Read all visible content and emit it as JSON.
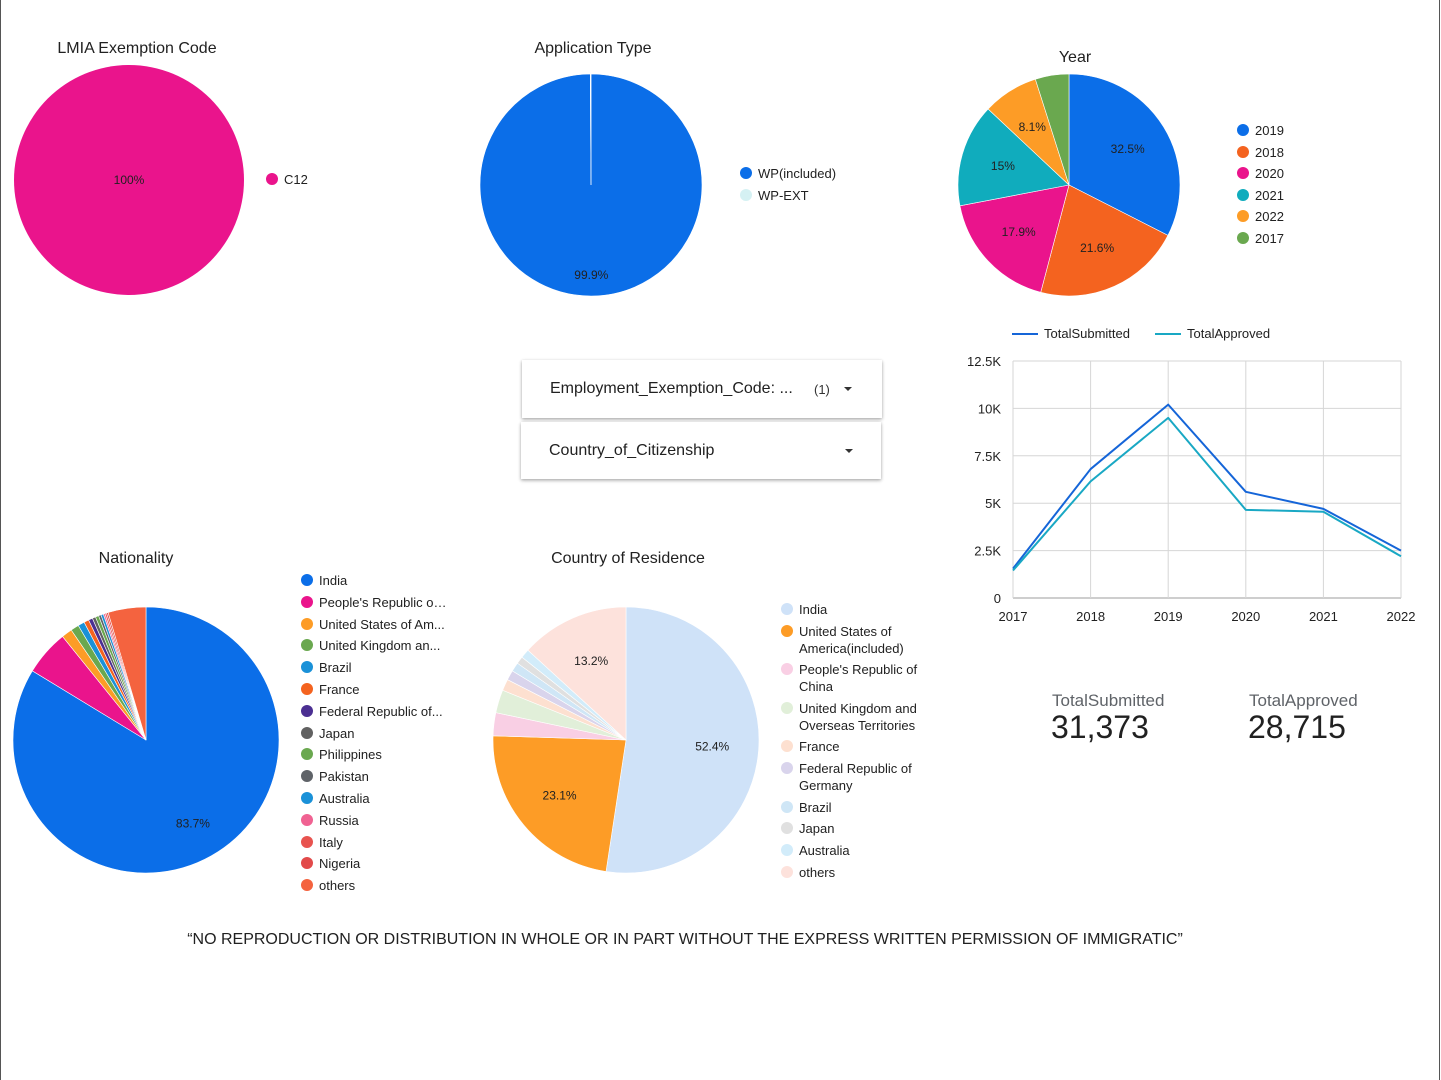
{
  "colors": {
    "blue": "#0b6ee8",
    "orange": "#f4631f",
    "pink": "#ea148c",
    "teal": "#10acbd",
    "amber": "#fd9c26",
    "green": "#6aa84f",
    "light_teal": "#d5f1f3",
    "total_submitted": "#1565d8",
    "total_approved": "#19a8c4"
  },
  "footer": "“NO REPRODUCTION OR DISTRIBUTION IN WHOLE OR IN PART WITHOUT THE EXPRESS WRITTEN PERMISSION OF IMMIGRATIC”",
  "filters": {
    "exemption": {
      "label": "Employment_Exemption_Code: ...",
      "count": "(1)"
    },
    "citizenship": {
      "label": "Country_of_Citizenship"
    }
  },
  "kpis": {
    "submitted": {
      "label": "TotalSubmitted",
      "value": "31,373"
    },
    "approved": {
      "label": "TotalApproved",
      "value": "28,715"
    }
  },
  "chart_data": [
    {
      "id": "lmia",
      "type": "pie",
      "title": "LMIA Exemption Code",
      "slices": [
        {
          "label": "C12",
          "value": 100,
          "data_label": "100%",
          "color": "#ea148c"
        }
      ],
      "legend": [
        "C12"
      ]
    },
    {
      "id": "apptype",
      "type": "pie",
      "title": "Application Type",
      "slices": [
        {
          "label": "WP(included)",
          "value": 99.9,
          "data_label": "99.9%",
          "color": "#0b6ee8"
        },
        {
          "label": "WP-EXT",
          "value": 0.1,
          "data_label": "",
          "color": "#d5f1f3"
        }
      ],
      "legend": [
        "WP(included)",
        "WP-EXT"
      ]
    },
    {
      "id": "year",
      "type": "pie",
      "title": "Year",
      "slices": [
        {
          "label": "2019",
          "value": 32.5,
          "data_label": "32.5%",
          "color": "#0b6ee8"
        },
        {
          "label": "2018",
          "value": 21.6,
          "data_label": "21.6%",
          "color": "#f4631f"
        },
        {
          "label": "2020",
          "value": 17.9,
          "data_label": "17.9%",
          "color": "#ea148c"
        },
        {
          "label": "2021",
          "value": 15.0,
          "data_label": "15%",
          "color": "#10acbd"
        },
        {
          "label": "2022",
          "value": 8.1,
          "data_label": "8.1%",
          "color": "#fd9c26"
        },
        {
          "label": "2017",
          "value": 4.9,
          "data_label": "",
          "color": "#6aa84f"
        }
      ],
      "legend": [
        "2019",
        "2018",
        "2020",
        "2021",
        "2022",
        "2017"
      ]
    },
    {
      "id": "nationality",
      "type": "pie",
      "title": "Nationality",
      "slices": [
        {
          "label": "India",
          "value": 83.7,
          "data_label": "83.7%",
          "color": "#0b6ee8"
        },
        {
          "label": "People's Republic of China",
          "value": 5.5,
          "data_label": "",
          "color": "#ea148c"
        },
        {
          "label": "United States of America(included)",
          "value": 1.3,
          "data_label": "",
          "color": "#fd9c26"
        },
        {
          "label": "United Kingdom and Overseas Territories",
          "value": 1.0,
          "data_label": "",
          "color": "#6aa84f"
        },
        {
          "label": "Brazil",
          "value": 0.8,
          "data_label": "",
          "color": "#1a91d8"
        },
        {
          "label": "France",
          "value": 0.6,
          "data_label": "",
          "color": "#f4631f"
        },
        {
          "label": "Federal Republic of Germany",
          "value": 0.5,
          "data_label": "",
          "color": "#4b2f92"
        },
        {
          "label": "Japan",
          "value": 0.4,
          "data_label": "",
          "color": "#616161"
        },
        {
          "label": "Philippines",
          "value": 0.4,
          "data_label": "",
          "color": "#6aa84f"
        },
        {
          "label": "Pakistan",
          "value": 0.3,
          "data_label": "",
          "color": "#5f6368"
        },
        {
          "label": "Australia",
          "value": 0.3,
          "data_label": "",
          "color": "#1a91d8"
        },
        {
          "label": "Russia",
          "value": 0.2,
          "data_label": "",
          "color": "#f06292"
        },
        {
          "label": "Italy",
          "value": 0.2,
          "data_label": "",
          "color": "#e8534f"
        },
        {
          "label": "Nigeria",
          "value": 0.2,
          "data_label": "",
          "color": "#e24a4a"
        },
        {
          "label": "others",
          "value": 4.6,
          "data_label": "",
          "color": "#f4633f"
        }
      ],
      "legend": [
        "India",
        "People's Republic of China",
        "United States of America(included)",
        "United Kingdom and Overseas Territories",
        "Brazil",
        "France",
        "Federal Republic of Germany",
        "Japan",
        "Philippines",
        "Pakistan",
        "Australia",
        "Russia",
        "Italy",
        "Nigeria",
        "others"
      ],
      "legend_display": [
        "India",
        "People's Republic of China",
        "United States of Am...",
        "United Kingdom an...",
        "Brazil",
        "France",
        "Federal Republic of...",
        "Japan",
        "Philippines",
        "Pakistan",
        "Australia",
        "Russia",
        "Italy",
        "Nigeria",
        "others"
      ]
    },
    {
      "id": "residence",
      "type": "pie",
      "title": "Country of Residence",
      "slices": [
        {
          "label": "India",
          "value": 52.4,
          "data_label": "52.4%",
          "color": "#cfe2f8"
        },
        {
          "label": "United States of America(included)",
          "value": 23.1,
          "data_label": "23.1%",
          "color": "#fd9c26"
        },
        {
          "label": "People's Republic of China",
          "value": 2.8,
          "data_label": "",
          "color": "#f9cfe4"
        },
        {
          "label": "United Kingdom and Overseas Territories",
          "value": 2.8,
          "data_label": "",
          "color": "#e1efd9"
        },
        {
          "label": "France",
          "value": 1.4,
          "data_label": "",
          "color": "#fde0d0"
        },
        {
          "label": "Federal Republic of Germany",
          "value": 1.2,
          "data_label": "",
          "color": "#d9d4ec"
        },
        {
          "label": "Brazil",
          "value": 1.1,
          "data_label": "",
          "color": "#cfe6f6"
        },
        {
          "label": "Japan",
          "value": 0.9,
          "data_label": "",
          "color": "#e0e0e0"
        },
        {
          "label": "Australia",
          "value": 1.1,
          "data_label": "",
          "color": "#d2ecfa"
        },
        {
          "label": "others",
          "value": 13.2,
          "data_label": "13.2%",
          "color": "#fde2dc"
        }
      ],
      "legend": [
        "India",
        "United States of America(included)",
        "People's Republic of China",
        "United Kingdom and Overseas Territories",
        "France",
        "Federal Republic of Germany",
        "Brazil",
        "Japan",
        "Australia",
        "others"
      ]
    },
    {
      "id": "trend",
      "type": "line",
      "title": "",
      "x": [
        2017,
        2018,
        2019,
        2020,
        2021,
        2022
      ],
      "xticks": [
        "2017",
        "2018",
        "2019",
        "2020",
        "2021",
        "2022"
      ],
      "ylim": [
        0,
        12500
      ],
      "yticks": [
        0,
        2500,
        5000,
        7500,
        10000,
        12500
      ],
      "ytick_labels": [
        "0",
        "2.5K",
        "5K",
        "7.5K",
        "10K",
        "12.5K"
      ],
      "series": [
        {
          "name": "TotalSubmitted",
          "values": [
            1550,
            6800,
            10200,
            5600,
            4700,
            2500
          ],
          "color": "#1565d8"
        },
        {
          "name": "TotalApproved",
          "values": [
            1450,
            6150,
            9500,
            4650,
            4550,
            2200
          ],
          "color": "#19a8c4"
        }
      ],
      "legend": "top"
    }
  ]
}
